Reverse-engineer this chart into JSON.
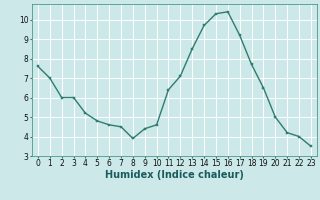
{
  "x": [
    0,
    1,
    2,
    3,
    4,
    5,
    6,
    7,
    8,
    9,
    10,
    11,
    12,
    13,
    14,
    15,
    16,
    17,
    18,
    19,
    20,
    21,
    22,
    23
  ],
  "y": [
    7.6,
    7.0,
    6.0,
    6.0,
    5.2,
    4.8,
    4.6,
    4.5,
    3.9,
    4.4,
    4.6,
    6.4,
    7.1,
    8.5,
    9.7,
    10.3,
    10.4,
    9.2,
    7.7,
    6.5,
    5.0,
    4.2,
    4.0,
    3.5
  ],
  "xlabel": "Humidex (Indice chaleur)",
  "line_color": "#2e7d6e",
  "marker_color": "#2e7d6e",
  "bg_color": "#cce8e8",
  "grid_color": "#ffffff",
  "xlim": [
    -0.5,
    23.5
  ],
  "ylim": [
    3,
    10.8
  ],
  "yticks": [
    3,
    4,
    5,
    6,
    7,
    8,
    9,
    10
  ],
  "xticks": [
    0,
    1,
    2,
    3,
    4,
    5,
    6,
    7,
    8,
    9,
    10,
    11,
    12,
    13,
    14,
    15,
    16,
    17,
    18,
    19,
    20,
    21,
    22,
    23
  ],
  "tick_label_fontsize": 5.5,
  "xlabel_fontsize": 7,
  "linewidth": 1.0,
  "markersize": 2.0
}
